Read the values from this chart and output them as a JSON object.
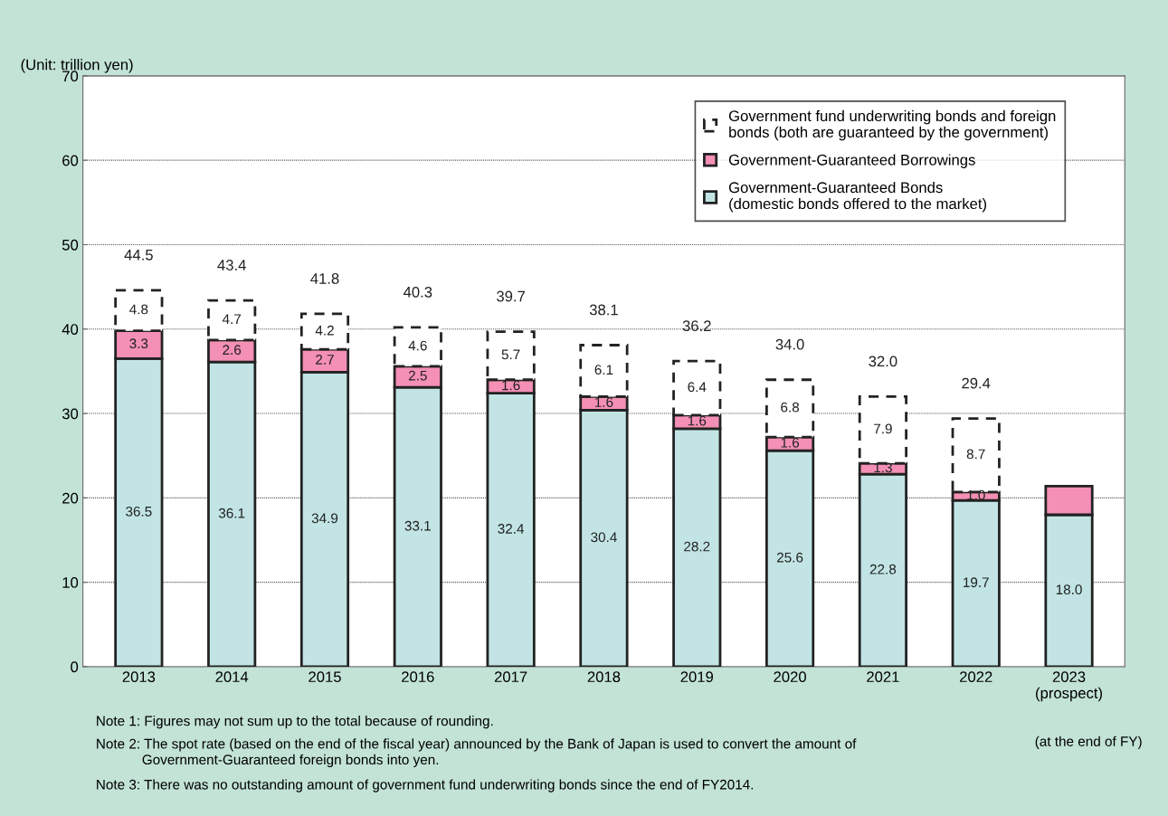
{
  "chart_data": {
    "type": "bar",
    "stacked": true,
    "ylabel": "(Unit: trillion yen)",
    "categories": [
      "2013",
      "2014",
      "2015",
      "2016",
      "2017",
      "2018",
      "2019",
      "2020",
      "2021",
      "2022",
      "2023\n(prospect)"
    ],
    "series": [
      {
        "name": "Government-Guaranteed Bonds\n(domestic bonds offered to the market)",
        "color": "#c2e4e4",
        "values": [
          36.5,
          36.1,
          34.9,
          33.1,
          32.4,
          30.4,
          28.2,
          25.6,
          22.8,
          19.7,
          18.0
        ],
        "value_labels": [
          "36.5",
          "36.1",
          "34.9",
          "33.1",
          "32.4",
          "30.4",
          "28.2",
          "25.6",
          "22.8",
          "19.7",
          "18.0"
        ]
      },
      {
        "name": "Government-Guaranteed Borrowings",
        "color": "#f48fb5",
        "values": [
          3.3,
          2.6,
          2.7,
          2.5,
          1.6,
          1.6,
          1.6,
          1.6,
          1.3,
          1.0,
          3.4
        ],
        "value_labels": [
          "3.3",
          "2.6",
          "2.7",
          "2.5",
          "1.6",
          "1.6",
          "1.6",
          "1.6",
          "1.3",
          "1.0",
          null
        ]
      },
      {
        "name": "Government fund underwriting bonds and foreign\nbonds (both are guaranteed by the government)",
        "color": "#ffffff",
        "line_style": "dashed",
        "values": [
          4.8,
          4.7,
          4.2,
          4.6,
          5.7,
          6.1,
          6.4,
          6.8,
          7.9,
          8.7,
          null
        ],
        "value_labels": [
          "4.8",
          "4.7",
          "4.2",
          "4.6",
          "5.7",
          "6.1",
          "6.4",
          "6.8",
          "7.9",
          "8.7",
          null
        ]
      }
    ],
    "totals": [
      "44.5",
      "43.4",
      "41.8",
      "40.3",
      "39.7",
      "38.1",
      "36.2",
      "34.0",
      "32.0",
      "29.4",
      null
    ],
    "ylim": [
      0,
      70
    ],
    "yticks": [
      0,
      10,
      20,
      30,
      40,
      50,
      60,
      70
    ],
    "grid": "y",
    "legend": "top right",
    "annotations": [
      "(at the end of FY)",
      "Note 1: Figures may not sum up to the total because of rounding.",
      "Note 2: The spot rate (based on the end of the fiscal year) announced by the Bank of Japan is used to convert the amount of\n            Government-Guaranteed foreign bonds into yen.",
      "Note 3: There was no outstanding amount of government fund underwriting bonds since the end of FY2014."
    ]
  }
}
